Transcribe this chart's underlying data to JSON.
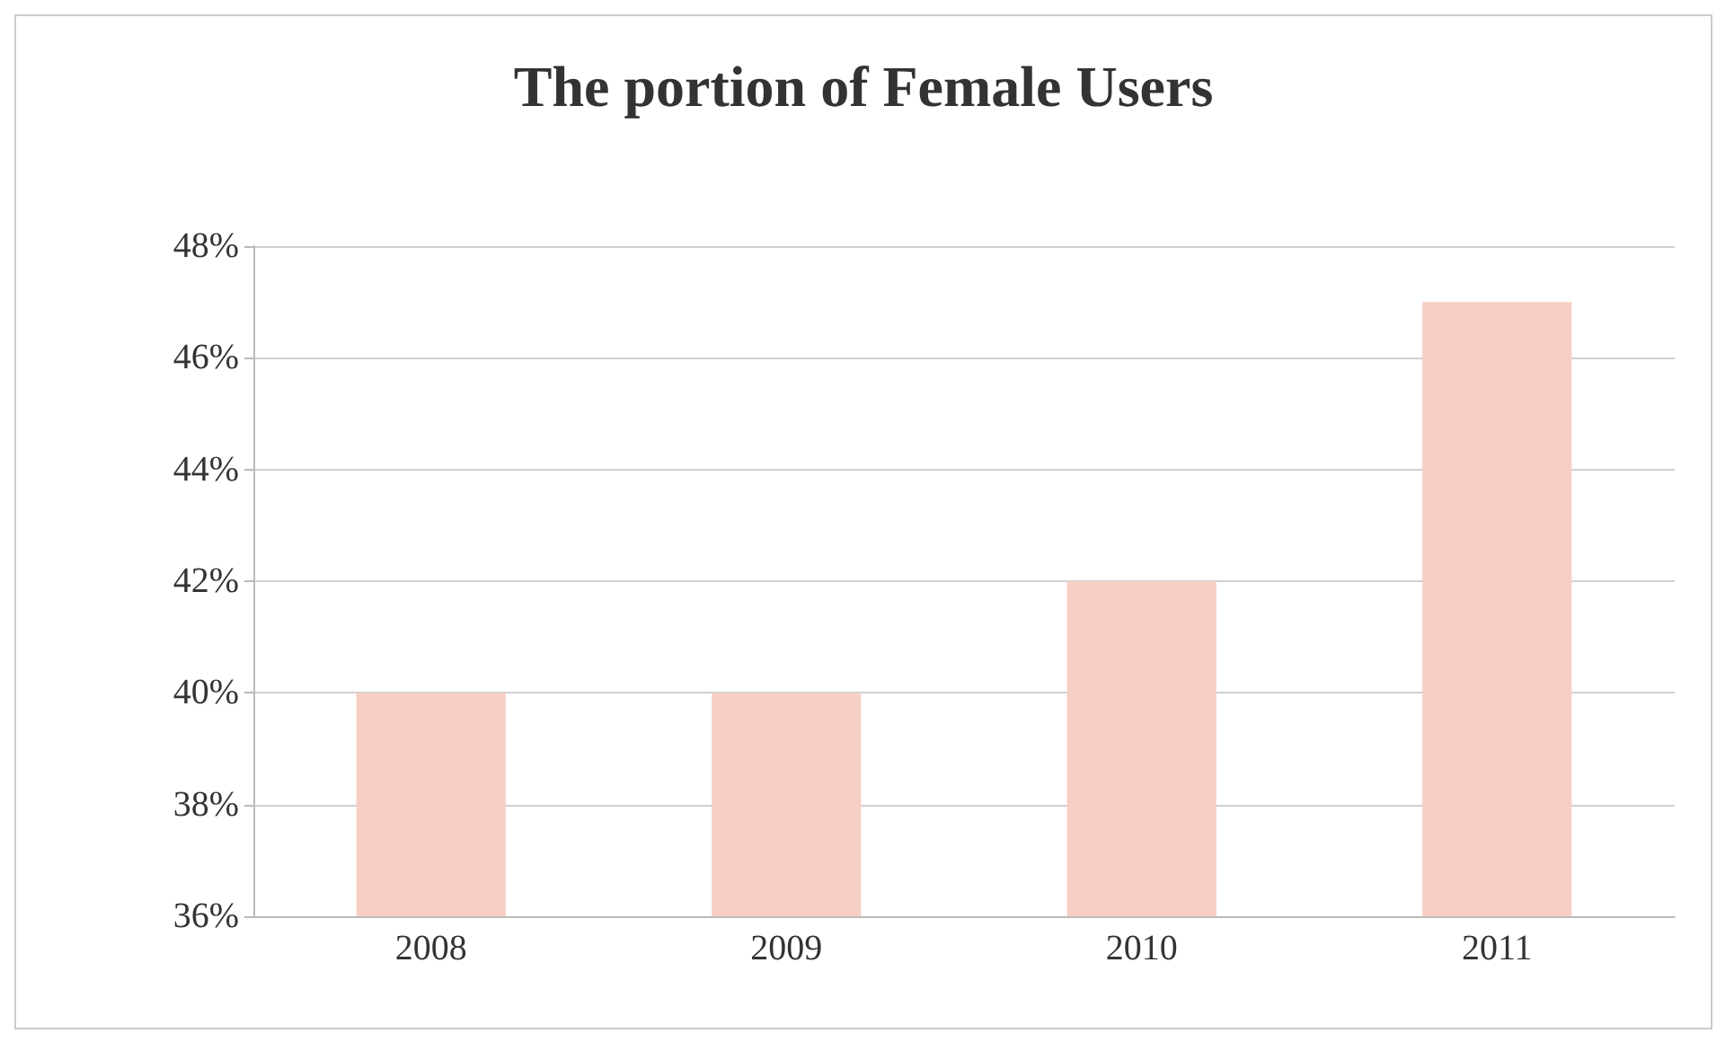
{
  "chart_data": {
    "type": "bar",
    "title": "The portion of Female Users",
    "categories": [
      "2008",
      "2009",
      "2010",
      "2011"
    ],
    "values": [
      40,
      40,
      42,
      47
    ],
    "color": "#f7cfc3",
    "ylim": [
      36,
      48
    ],
    "yticks": [
      {
        "value": 36,
        "label": "36%"
      },
      {
        "value": 38,
        "label": "38%"
      },
      {
        "value": 40,
        "label": "40%"
      },
      {
        "value": 42,
        "label": "42%"
      },
      {
        "value": 44,
        "label": "44%"
      },
      {
        "value": 46,
        "label": "46%"
      },
      {
        "value": 48,
        "label": "48%"
      }
    ],
    "grid": "y"
  }
}
